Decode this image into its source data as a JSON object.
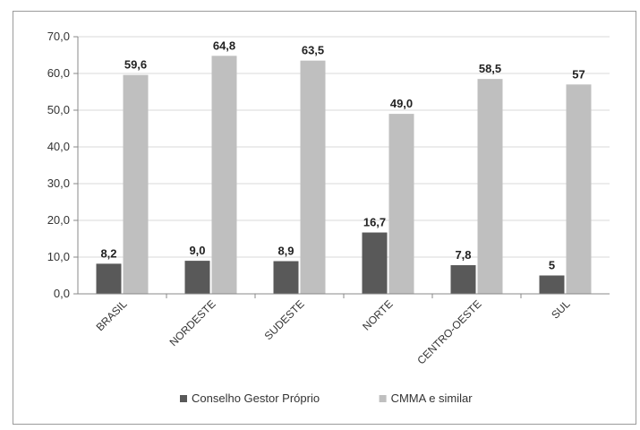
{
  "chart_data": {
    "type": "bar",
    "categories": [
      "BRASIL",
      "NORDESTE",
      "SUDESTE",
      "NORTE",
      "CENTRO-OESTE",
      "SUL"
    ],
    "series": [
      {
        "name": "Conselho Gestor Próprio",
        "values": [
          8.2,
          9.0,
          8.9,
          16.7,
          7.8,
          5
        ],
        "labels": [
          "8,2",
          "9,0",
          "8,9",
          "16,7",
          "7,8",
          "5"
        ],
        "color": "#595959"
      },
      {
        "name": "CMMA e similar",
        "values": [
          59.6,
          64.8,
          63.5,
          49.0,
          58.5,
          57
        ],
        "labels": [
          "59,6",
          "64,8",
          "63,5",
          "49,0",
          "58,5",
          "57"
        ],
        "color": "#bfbfbf"
      }
    ],
    "yticks": [
      "0,0",
      "10,0",
      "20,0",
      "30,0",
      "40,0",
      "50,0",
      "60,0",
      "70,0"
    ],
    "ylim": [
      0,
      70
    ],
    "grid": true,
    "legend_position": "bottom"
  }
}
